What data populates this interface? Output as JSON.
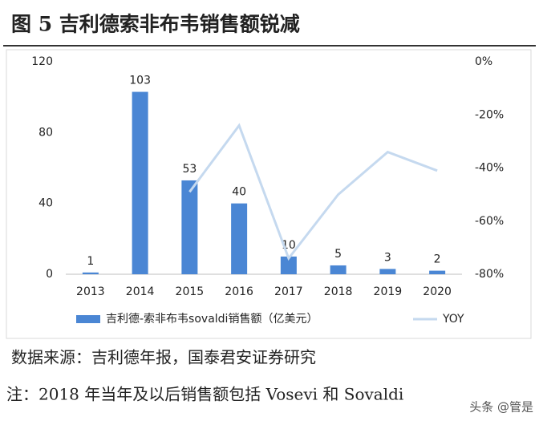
{
  "chart_data": {
    "type": "bar",
    "title": "图 5 吉利德索非布韦销售额锐减",
    "categories": [
      "2013",
      "2014",
      "2015",
      "2016",
      "2017",
      "2018",
      "2019",
      "2020"
    ],
    "series": [
      {
        "name": "吉利德-索非布韦sovaldi销售额（亿美元）",
        "type": "bar",
        "color": "#4a86d4",
        "values": [
          1,
          103,
          53,
          40,
          10,
          5,
          3,
          2
        ]
      },
      {
        "name": "YOY",
        "type": "line",
        "axis": "y2",
        "color": "#c5d9ef",
        "values": [
          null,
          null,
          -49,
          -24,
          -74,
          -50,
          -34,
          -41
        ]
      }
    ],
    "ylim": [
      0,
      120
    ],
    "yticks": [
      0,
      40,
      80,
      120
    ],
    "y2lim": [
      -80,
      0
    ],
    "y2ticks": [
      {
        "value": 0,
        "label": "0%"
      },
      {
        "value": -20,
        "label": "-20%"
      },
      {
        "value": -40,
        "label": "-40%"
      },
      {
        "value": -60,
        "label": "-60%"
      },
      {
        "value": -80,
        "label": "-80%"
      }
    ],
    "legend": "bottom",
    "source": "数据来源：吉利德年报，国泰君安证券研究",
    "note": "注：2018 年当年及以后销售额包括 Vosevi 和 Sovaldi",
    "watermark": "头条 @管是"
  }
}
